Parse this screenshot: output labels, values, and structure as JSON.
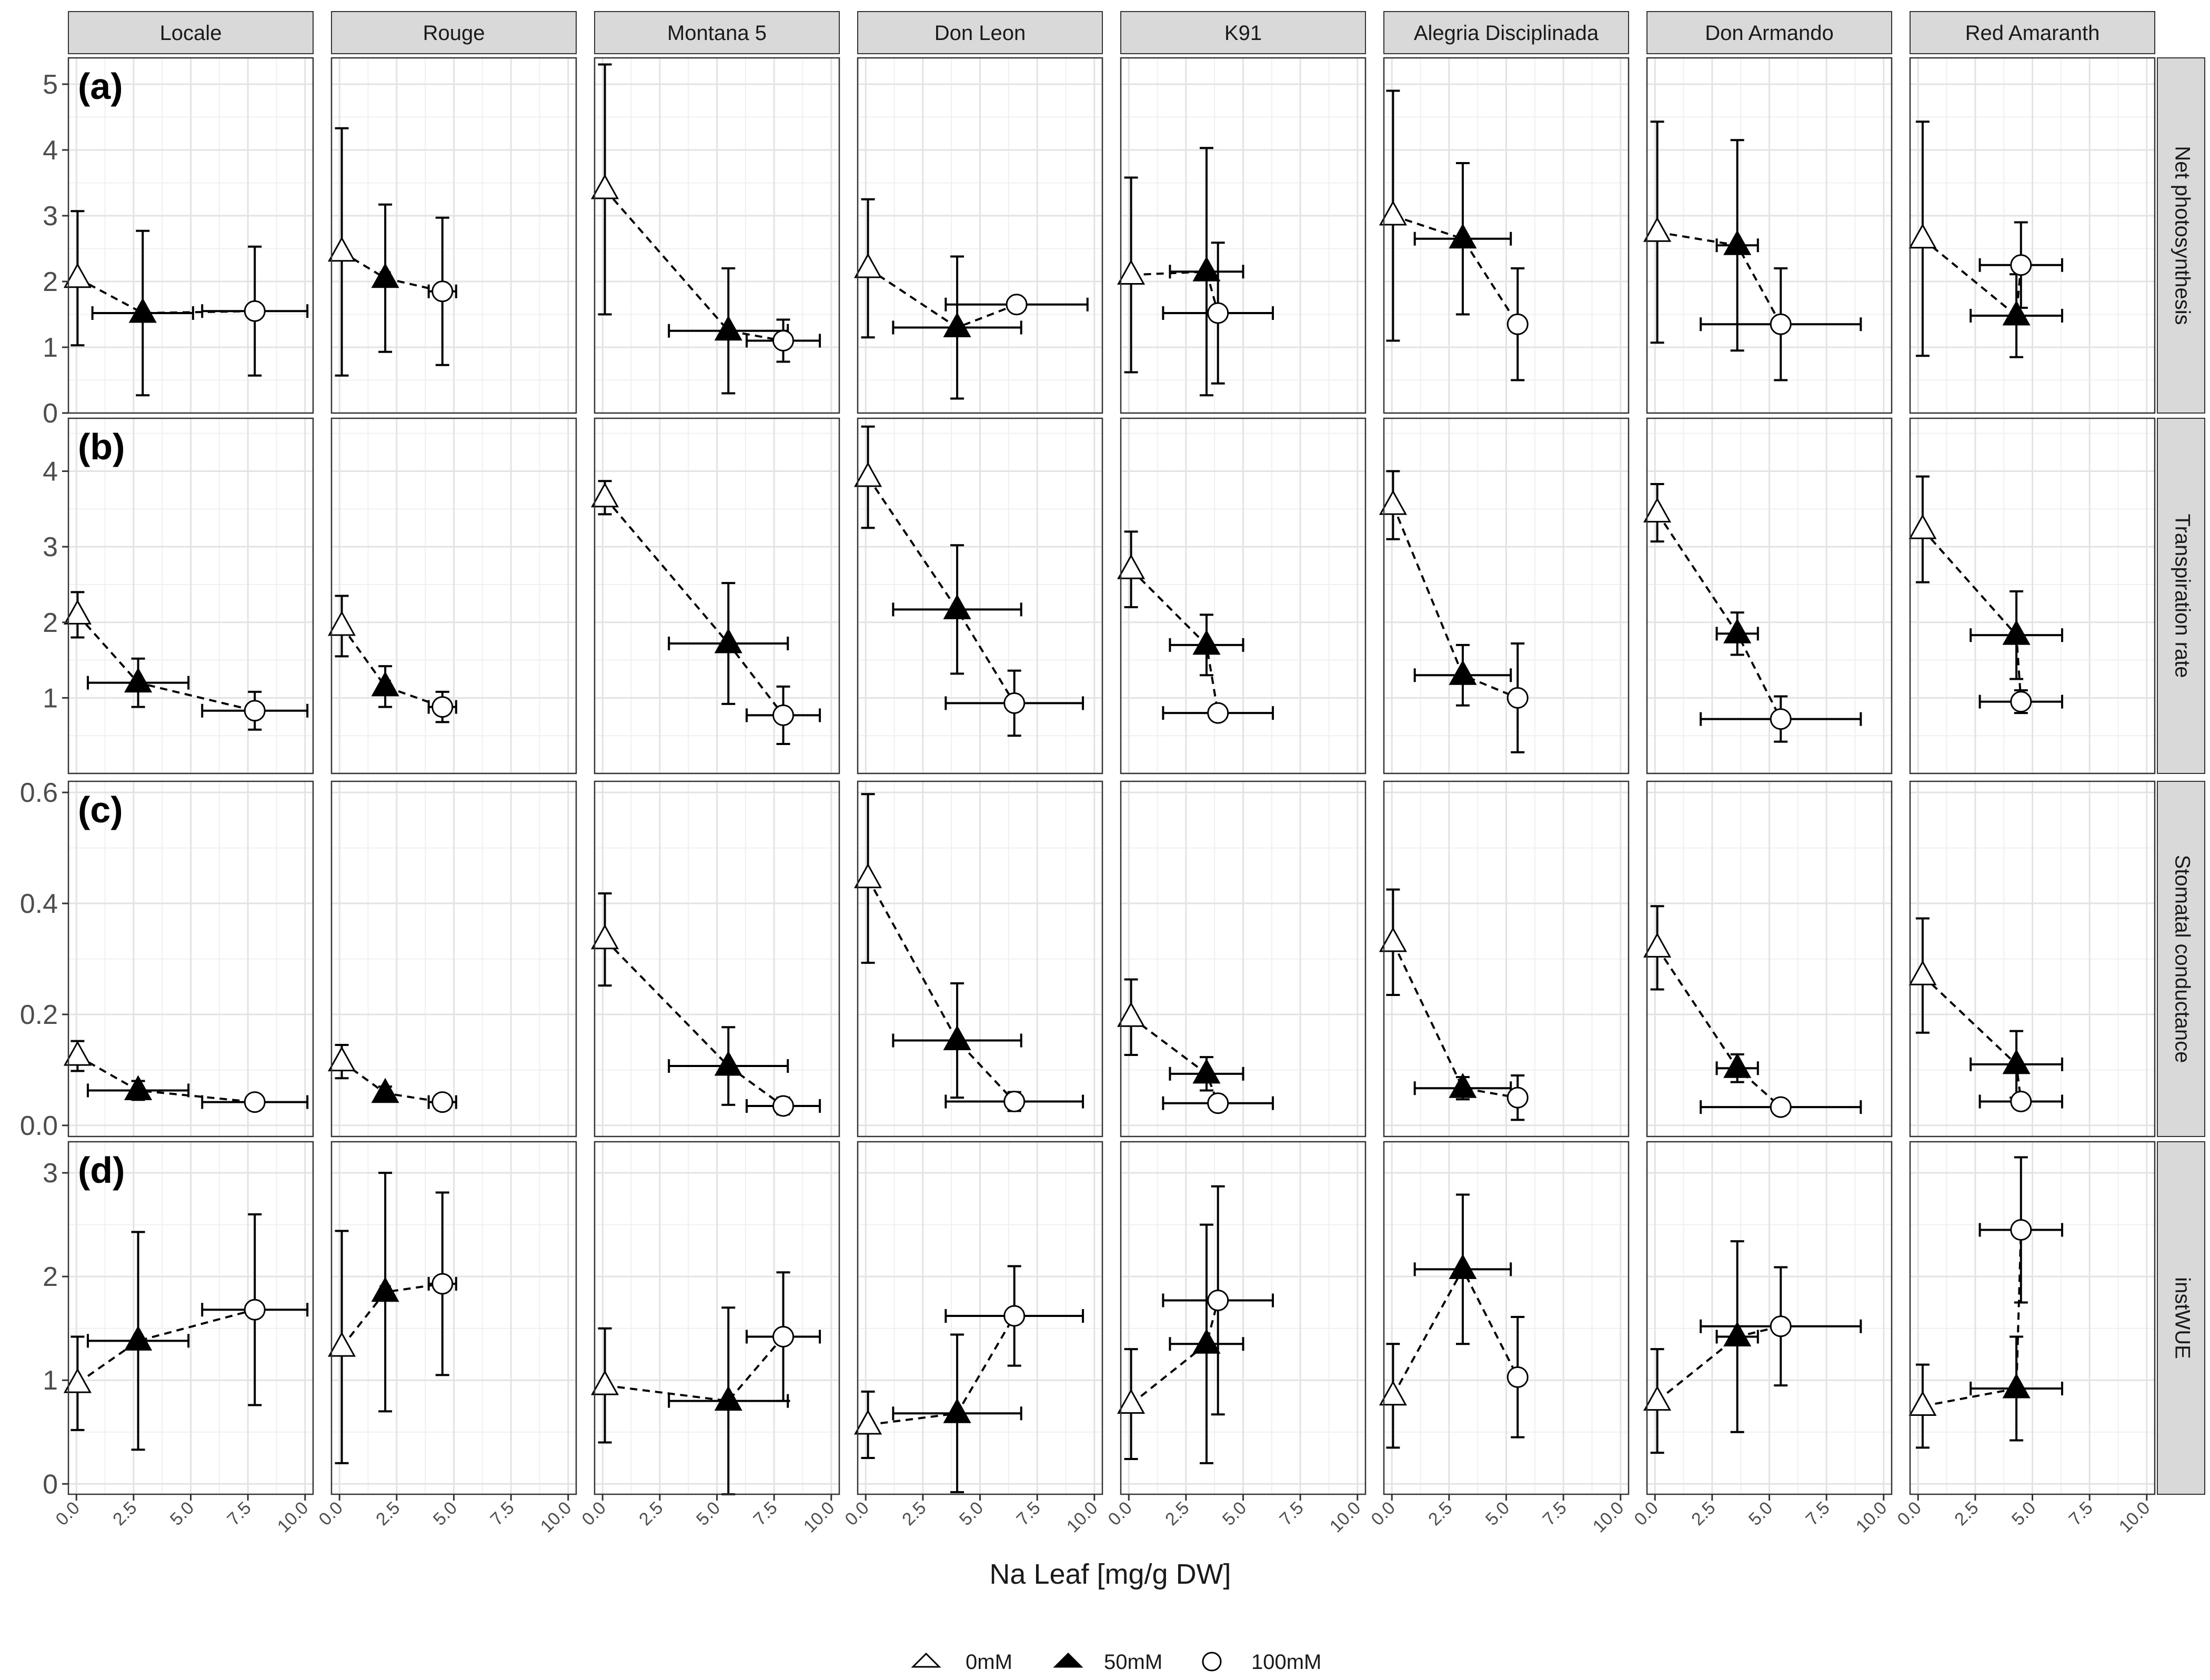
{
  "chart_data": {
    "type": "scatter",
    "xlabel": "Na Leaf [mg/g DW]",
    "xlim": [
      0,
      10
    ],
    "x_ticks": [
      "0.0",
      "2.5",
      "5.0",
      "7.5",
      "10.0"
    ],
    "varieties": [
      "Locale",
      "Rouge",
      "Montana 5",
      "Don Leon",
      "K91",
      "Alegria Disciplinada",
      "Don Armando",
      "Red Amaranth"
    ],
    "legend": [
      {
        "name": "0mM",
        "marker": "open-triangle"
      },
      {
        "name": "50mM",
        "marker": "filled-triangle"
      },
      {
        "name": "100mM",
        "marker": "open-circle"
      }
    ],
    "rows": [
      {
        "tag": "(a)",
        "name": "Net photosynthesis",
        "ylim": [
          0,
          5.4
        ],
        "y_ticks": [
          {
            "v": 0,
            "t": "0"
          },
          {
            "v": 1,
            "t": "1"
          },
          {
            "v": 2,
            "t": "2"
          },
          {
            "v": 3,
            "t": "3"
          },
          {
            "v": 4,
            "t": "4"
          },
          {
            "v": 5,
            "t": "5"
          }
        ],
        "panels": [
          [
            {
              "x": 0.05,
              "xe": 0.1,
              "y": 2.05,
              "ye": 1.02
            },
            {
              "x": 2.9,
              "xe": 2.2,
              "y": 1.52,
              "ye": 1.25
            },
            {
              "x": 7.8,
              "xe": 2.3,
              "y": 1.55,
              "ye": 0.98
            }
          ],
          [
            {
              "x": 0.1,
              "xe": 0.1,
              "y": 2.45,
              "ye": 1.88
            },
            {
              "x": 2.0,
              "xe": 0.2,
              "y": 2.05,
              "ye": 1.12
            },
            {
              "x": 4.5,
              "xe": 0.6,
              "y": 1.85,
              "ye": 1.12
            }
          ],
          [
            {
              "x": 0.1,
              "xe": 0.1,
              "y": 3.4,
              "ye": 1.9
            },
            {
              "x": 5.5,
              "xe": 2.6,
              "y": 1.25,
              "ye": 0.95
            },
            {
              "x": 7.9,
              "xe": 1.6,
              "y": 1.1,
              "ye": 0.32
            }
          ],
          [
            {
              "x": 0.1,
              "xe": 0.1,
              "y": 2.2,
              "ye": 1.05
            },
            {
              "x": 4.0,
              "xe": 2.8,
              "y": 1.3,
              "ye": 1.08
            },
            {
              "x": 6.6,
              "xe": 3.1,
              "y": 1.65,
              "ye": 0.1
            }
          ],
          [
            {
              "x": 0.1,
              "xe": 0.1,
              "y": 2.1,
              "ye": 1.48
            },
            {
              "x": 3.4,
              "xe": 1.6,
              "y": 2.15,
              "ye": 1.88
            },
            {
              "x": 3.9,
              "xe": 2.4,
              "y": 1.52,
              "ye": 1.07
            }
          ],
          [
            {
              "x": 0.05,
              "xe": 0.1,
              "y": 3.0,
              "ye": 1.9
            },
            {
              "x": 3.1,
              "xe": 2.1,
              "y": 2.65,
              "ye": 1.15
            },
            {
              "x": 5.5,
              "xe": 0.2,
              "y": 1.35,
              "ye": 0.85
            }
          ],
          [
            {
              "x": 0.1,
              "xe": 0.1,
              "y": 2.75,
              "ye": 1.68
            },
            {
              "x": 3.6,
              "xe": 0.9,
              "y": 2.55,
              "ye": 1.6
            },
            {
              "x": 5.5,
              "xe": 3.5,
              "y": 1.35,
              "ye": 0.85
            }
          ],
          [
            {
              "x": 0.2,
              "xe": 0.1,
              "y": 2.65,
              "ye": 1.78
            },
            {
              "x": 4.3,
              "xe": 2.0,
              "y": 1.48,
              "ye": 0.63
            },
            {
              "x": 4.5,
              "xe": 1.8,
              "y": 2.25,
              "ye": 0.65
            }
          ]
        ]
      },
      {
        "tag": "(b)",
        "name": "Transpiration rate",
        "ylim": [
          0,
          4.7
        ],
        "y_ticks": [
          {
            "v": 1,
            "t": "1"
          },
          {
            "v": 2,
            "t": "2"
          },
          {
            "v": 3,
            "t": "3"
          },
          {
            "v": 4,
            "t": "4"
          }
        ],
        "panels": [
          [
            {
              "x": 0.05,
              "xe": 0.1,
              "y": 2.1,
              "ye": 0.3
            },
            {
              "x": 2.7,
              "xe": 2.2,
              "y": 1.2,
              "ye": 0.32
            },
            {
              "x": 7.8,
              "xe": 2.3,
              "y": 0.83,
              "ye": 0.25
            }
          ],
          [
            {
              "x": 0.1,
              "xe": 0.1,
              "y": 1.95,
              "ye": 0.4
            },
            {
              "x": 2.0,
              "xe": 0.2,
              "y": 1.15,
              "ye": 0.27
            },
            {
              "x": 4.5,
              "xe": 0.6,
              "y": 0.88,
              "ye": 0.2
            }
          ],
          [
            {
              "x": 0.1,
              "xe": 0.1,
              "y": 3.65,
              "ye": 0.22
            },
            {
              "x": 5.5,
              "xe": 2.6,
              "y": 1.72,
              "ye": 0.8
            },
            {
              "x": 7.9,
              "xe": 1.6,
              "y": 0.77,
              "ye": 0.38
            }
          ],
          [
            {
              "x": 0.1,
              "xe": 0.1,
              "y": 3.92,
              "ye": 0.67
            },
            {
              "x": 4.0,
              "xe": 2.8,
              "y": 2.17,
              "ye": 0.85
            },
            {
              "x": 6.5,
              "xe": 3.0,
              "y": 0.93,
              "ye": 0.43
            }
          ],
          [
            {
              "x": 0.1,
              "xe": 0.1,
              "y": 2.7,
              "ye": 0.5
            },
            {
              "x": 3.4,
              "xe": 1.6,
              "y": 1.7,
              "ye": 0.4
            },
            {
              "x": 3.9,
              "xe": 2.4,
              "y": 0.8,
              "ye": 0.1
            }
          ],
          [
            {
              "x": 0.05,
              "xe": 0.1,
              "y": 3.55,
              "ye": 0.45
            },
            {
              "x": 3.1,
              "xe": 2.1,
              "y": 1.3,
              "ye": 0.4
            },
            {
              "x": 5.5,
              "xe": 0.2,
              "y": 1.0,
              "ye": 0.72
            }
          ],
          [
            {
              "x": 0.1,
              "xe": 0.1,
              "y": 3.45,
              "ye": 0.38
            },
            {
              "x": 3.6,
              "xe": 0.9,
              "y": 1.85,
              "ye": 0.28
            },
            {
              "x": 5.5,
              "xe": 3.5,
              "y": 0.72,
              "ye": 0.3
            }
          ],
          [
            {
              "x": 0.2,
              "xe": 0.1,
              "y": 3.23,
              "ye": 0.7
            },
            {
              "x": 4.3,
              "xe": 2.0,
              "y": 1.83,
              "ye": 0.58
            },
            {
              "x": 4.5,
              "xe": 1.8,
              "y": 0.95,
              "ye": 0.15
            }
          ]
        ]
      },
      {
        "tag": "(c)",
        "name": "Stomatal conductance",
        "ylim": [
          -0.02,
          0.62
        ],
        "y_ticks": [
          {
            "v": 0,
            "t": "0.0"
          },
          {
            "v": 0.2,
            "t": "0.2"
          },
          {
            "v": 0.4,
            "t": "0.4"
          },
          {
            "v": 0.6,
            "t": "0.6"
          }
        ],
        "panels": [
          [
            {
              "x": 0.05,
              "xe": 0.1,
              "y": 0.125,
              "ye": 0.027
            },
            {
              "x": 2.7,
              "xe": 2.2,
              "y": 0.063,
              "ye": 0.017
            },
            {
              "x": 7.8,
              "xe": 2.3,
              "y": 0.042,
              "ye": 0.012
            }
          ],
          [
            {
              "x": 0.1,
              "xe": 0.1,
              "y": 0.115,
              "ye": 0.03
            },
            {
              "x": 2.0,
              "xe": 0.2,
              "y": 0.058,
              "ye": 0.012
            },
            {
              "x": 4.5,
              "xe": 0.6,
              "y": 0.042,
              "ye": 0.01
            }
          ],
          [
            {
              "x": 0.1,
              "xe": 0.1,
              "y": 0.335,
              "ye": 0.083
            },
            {
              "x": 5.5,
              "xe": 2.6,
              "y": 0.107,
              "ye": 0.07
            },
            {
              "x": 7.9,
              "xe": 1.6,
              "y": 0.035,
              "ye": 0.015
            }
          ],
          [
            {
              "x": 0.1,
              "xe": 0.1,
              "y": 0.445,
              "ye": 0.152
            },
            {
              "x": 4.0,
              "xe": 2.8,
              "y": 0.153,
              "ye": 0.103
            },
            {
              "x": 6.5,
              "xe": 3.0,
              "y": 0.043,
              "ye": 0.017
            }
          ],
          [
            {
              "x": 0.1,
              "xe": 0.1,
              "y": 0.195,
              "ye": 0.068
            },
            {
              "x": 3.4,
              "xe": 1.6,
              "y": 0.093,
              "ye": 0.03
            },
            {
              "x": 3.9,
              "xe": 2.4,
              "y": 0.04,
              "ye": 0.008
            }
          ],
          [
            {
              "x": 0.05,
              "xe": 0.1,
              "y": 0.33,
              "ye": 0.095
            },
            {
              "x": 3.1,
              "xe": 2.1,
              "y": 0.067,
              "ye": 0.02
            },
            {
              "x": 5.5,
              "xe": 0.2,
              "y": 0.05,
              "ye": 0.04
            }
          ],
          [
            {
              "x": 0.1,
              "xe": 0.1,
              "y": 0.32,
              "ye": 0.075
            },
            {
              "x": 3.6,
              "xe": 0.9,
              "y": 0.103,
              "ye": 0.025
            },
            {
              "x": 5.5,
              "xe": 3.5,
              "y": 0.033,
              "ye": 0.013
            }
          ],
          [
            {
              "x": 0.2,
              "xe": 0.1,
              "y": 0.27,
              "ye": 0.103
            },
            {
              "x": 4.3,
              "xe": 2.0,
              "y": 0.11,
              "ye": 0.06
            },
            {
              "x": 4.5,
              "xe": 1.8,
              "y": 0.043,
              "ye": 0.012
            }
          ]
        ]
      },
      {
        "tag": "(d)",
        "name": "instWUE",
        "ylim": [
          -0.1,
          3.3
        ],
        "y_ticks": [
          {
            "v": 0,
            "t": "0"
          },
          {
            "v": 1,
            "t": "1"
          },
          {
            "v": 2,
            "t": "2"
          },
          {
            "v": 3,
            "t": "3"
          }
        ],
        "panels": [
          [
            {
              "x": 0.05,
              "xe": 0.1,
              "y": 0.97,
              "ye": 0.45
            },
            {
              "x": 2.7,
              "xe": 2.2,
              "y": 1.38,
              "ye": 1.05
            },
            {
              "x": 7.8,
              "xe": 2.3,
              "y": 1.68,
              "ye": 0.92
            }
          ],
          [
            {
              "x": 0.1,
              "xe": 0.1,
              "y": 1.32,
              "ye": 1.12
            },
            {
              "x": 2.0,
              "xe": 0.2,
              "y": 1.85,
              "ye": 1.15
            },
            {
              "x": 4.5,
              "xe": 0.6,
              "y": 1.93,
              "ye": 0.88
            }
          ],
          [
            {
              "x": 0.1,
              "xe": 0.1,
              "y": 0.95,
              "ye": 0.55
            },
            {
              "x": 5.5,
              "xe": 2.6,
              "y": 0.8,
              "ye": 0.9
            },
            {
              "x": 7.9,
              "xe": 1.6,
              "y": 1.42,
              "ye": 0.62
            }
          ],
          [
            {
              "x": 0.1,
              "xe": 0.1,
              "y": 0.57,
              "ye": 0.32
            },
            {
              "x": 4.0,
              "xe": 2.8,
              "y": 0.68,
              "ye": 0.76
            },
            {
              "x": 6.5,
              "xe": 3.0,
              "y": 1.62,
              "ye": 0.48
            }
          ],
          [
            {
              "x": 0.1,
              "xe": 0.1,
              "y": 0.77,
              "ye": 0.53
            },
            {
              "x": 3.4,
              "xe": 1.6,
              "y": 1.35,
              "ye": 1.15
            },
            {
              "x": 3.9,
              "xe": 2.4,
              "y": 1.77,
              "ye": 1.1
            }
          ],
          [
            {
              "x": 0.05,
              "xe": 0.1,
              "y": 0.85,
              "ye": 0.5
            },
            {
              "x": 3.1,
              "xe": 2.1,
              "y": 2.07,
              "ye": 0.72
            },
            {
              "x": 5.5,
              "xe": 0.2,
              "y": 1.03,
              "ye": 0.58
            }
          ],
          [
            {
              "x": 0.1,
              "xe": 0.1,
              "y": 0.8,
              "ye": 0.5
            },
            {
              "x": 3.6,
              "xe": 0.9,
              "y": 1.42,
              "ye": 0.92
            },
            {
              "x": 5.5,
              "xe": 3.5,
              "y": 1.52,
              "ye": 0.57
            }
          ],
          [
            {
              "x": 0.2,
              "xe": 0.1,
              "y": 0.75,
              "ye": 0.4
            },
            {
              "x": 4.3,
              "xe": 2.0,
              "y": 0.92,
              "ye": 0.5
            },
            {
              "x": 4.5,
              "xe": 1.8,
              "y": 2.45,
              "ye": 0.7
            }
          ]
        ]
      }
    ]
  }
}
